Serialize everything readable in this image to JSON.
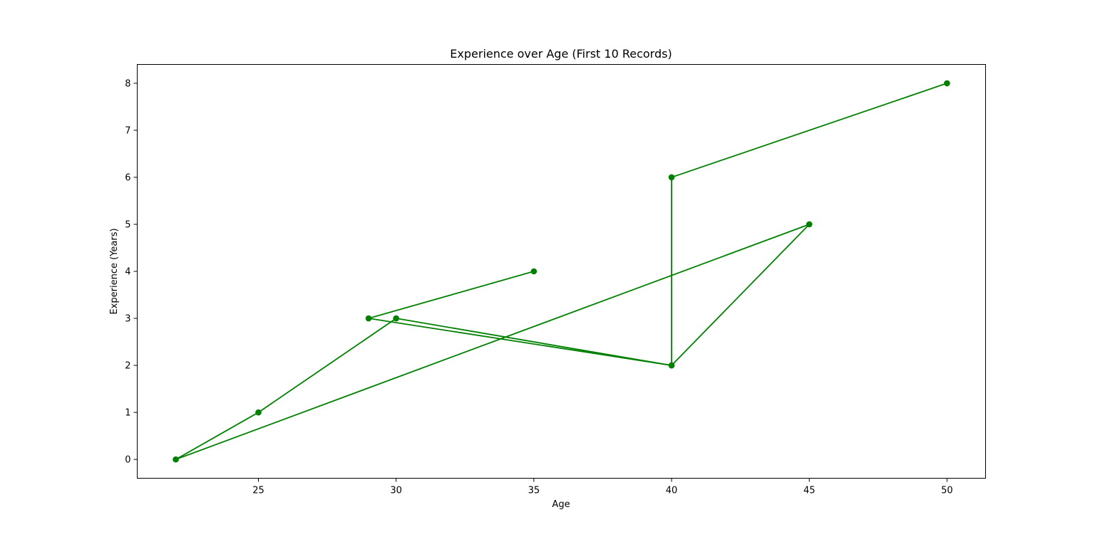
{
  "chart_data": {
    "type": "line",
    "title": "Experience over Age (First 10 Records)",
    "xlabel": "Age",
    "ylabel": "Experience (Years)",
    "xlim": [
      20.6,
      51.4
    ],
    "ylim": [
      -0.4,
      8.4
    ],
    "xticks": [
      25,
      30,
      35,
      40,
      45,
      50
    ],
    "yticks": [
      0,
      1,
      2,
      3,
      4,
      5,
      6,
      7,
      8
    ],
    "grid": false,
    "legend": "none",
    "series": [
      {
        "color": "#008000",
        "marker": "circle",
        "points": [
          {
            "x": 35,
            "y": 4
          },
          {
            "x": 29,
            "y": 3
          },
          {
            "x": 40,
            "y": 2
          },
          {
            "x": 45,
            "y": 5
          },
          {
            "x": 22,
            "y": 0
          },
          {
            "x": 25,
            "y": 1
          },
          {
            "x": 30,
            "y": 3
          },
          {
            "x": 40,
            "y": 2
          },
          {
            "x": 40,
            "y": 6
          },
          {
            "x": 50,
            "y": 8
          }
        ]
      }
    ]
  }
}
